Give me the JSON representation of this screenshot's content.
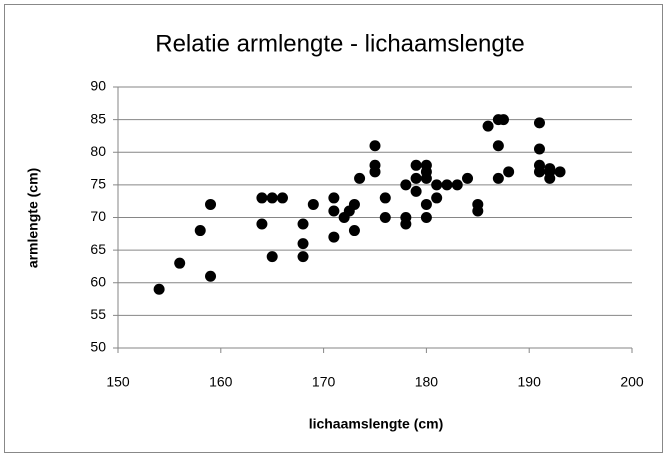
{
  "chart_data": {
    "type": "scatter",
    "title": "Relatie armlengte - lichaamslengte",
    "x_label": "lichaamslengte (cm)",
    "y_label": "armlengte (cm)",
    "x": [
      154,
      156,
      158,
      159,
      159,
      164,
      164,
      165,
      165,
      166,
      168,
      168,
      168,
      169,
      171,
      171,
      171,
      172,
      172.5,
      173,
      173,
      173.5,
      175,
      175,
      175,
      176,
      176,
      178,
      178,
      178,
      179,
      179,
      179,
      180,
      180,
      180,
      180,
      180,
      181,
      181,
      182,
      183,
      184,
      185,
      185,
      186,
      187,
      187.5,
      187,
      187,
      188,
      191,
      191,
      191,
      191,
      192,
      192,
      192,
      193
    ],
    "values": [
      59,
      63,
      68,
      72,
      61,
      73,
      69,
      73,
      64,
      73,
      69,
      66,
      64,
      72,
      73,
      71,
      67,
      70,
      71,
      72,
      68,
      76,
      81,
      78,
      77,
      73,
      70,
      75,
      70,
      69,
      78,
      76,
      74,
      78,
      77,
      76,
      72,
      70,
      73,
      75,
      75,
      75,
      76,
      72,
      71,
      84,
      85,
      85,
      81,
      76,
      77,
      84.5,
      80.5,
      78,
      77,
      77,
      76,
      77.5,
      77
    ],
    "color": "#000000",
    "xlim": [
      150,
      200
    ],
    "xticks": [
      150,
      160,
      170,
      180,
      190,
      200
    ],
    "ylim": [
      50,
      90
    ],
    "yticks": [
      50,
      55,
      60,
      65,
      70,
      75,
      80,
      85,
      90
    ],
    "grid": true
  }
}
